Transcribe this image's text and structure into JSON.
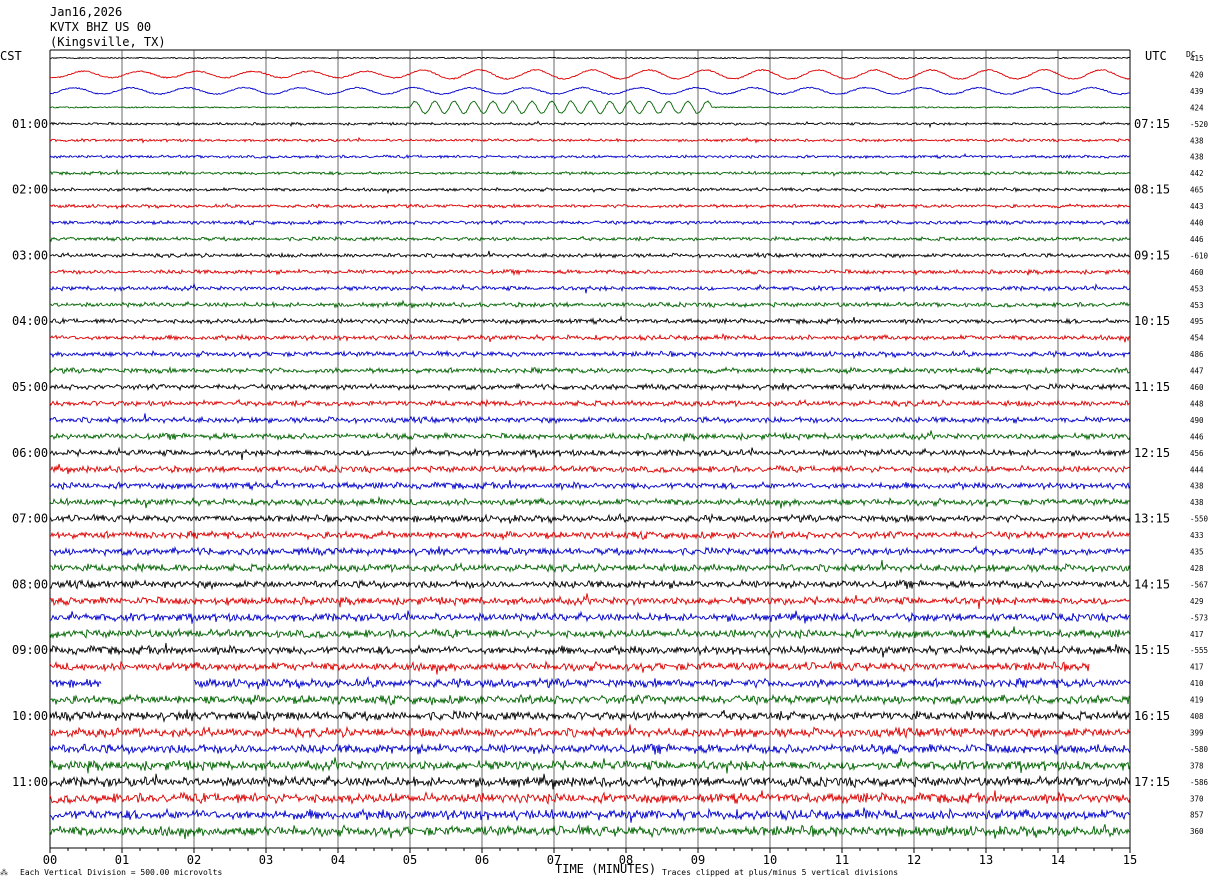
{
  "header": {
    "date": "Jan16,2026",
    "station": "KVTX BHZ US 00",
    "location": "(Kingsville, TX)"
  },
  "left_tz": "CST",
  "right_tz": "UTC",
  "dc_label": "DC",
  "footer": {
    "scale": "Each Vertical Division =  500.00 microvolts",
    "xlabel": "TIME (MINUTES)",
    "clip": "Traces clipped at plus/minus 5 vertical divisions"
  },
  "chart_data": {
    "type": "line",
    "title": "",
    "xlabel": "TIME (MINUTES)",
    "x_ticks": [
      "00",
      "01",
      "02",
      "03",
      "04",
      "05",
      "06",
      "07",
      "08",
      "09",
      "10",
      "11",
      "12",
      "13",
      "14",
      "15"
    ],
    "xlim": [
      0,
      15
    ],
    "trace_count": 48,
    "trace_colors": [
      "#000000",
      "#dd0000",
      "#0000cc",
      "#006400"
    ],
    "left_hour_labels": [
      "01:00",
      "02:00",
      "03:00",
      "04:00",
      "05:00",
      "06:00",
      "07:00",
      "08:00",
      "09:00",
      "10:00",
      "11:00"
    ],
    "right_hour_labels": [
      "07:15",
      "08:15",
      "09:15",
      "10:15",
      "11:15",
      "12:15",
      "13:15",
      "14:15",
      "15:15",
      "16:15",
      "17:15"
    ],
    "dc_offsets": [
      "415",
      "420",
      "439",
      "424",
      "-520",
      "438",
      "438",
      "442",
      "465",
      "443",
      "440",
      "446",
      "-610",
      "460",
      "453",
      "453",
      "495",
      "454",
      "486",
      "447",
      "460",
      "448",
      "490",
      "446",
      "456",
      "444",
      "438",
      "438",
      "-550",
      "433",
      "435",
      "428",
      "-567",
      "429",
      "-573",
      "417",
      "-555",
      "417",
      "410",
      "419",
      "408",
      "399",
      "-580",
      "378",
      "-586",
      "370",
      "857",
      "360"
    ],
    "gaps": [
      {
        "trace": 38,
        "from_minute": 0.72,
        "to_minute": 2.0
      }
    ],
    "teleseismic_event": {
      "traces": [
        0,
        1,
        2,
        3
      ],
      "start_minute": 5.0
    }
  }
}
